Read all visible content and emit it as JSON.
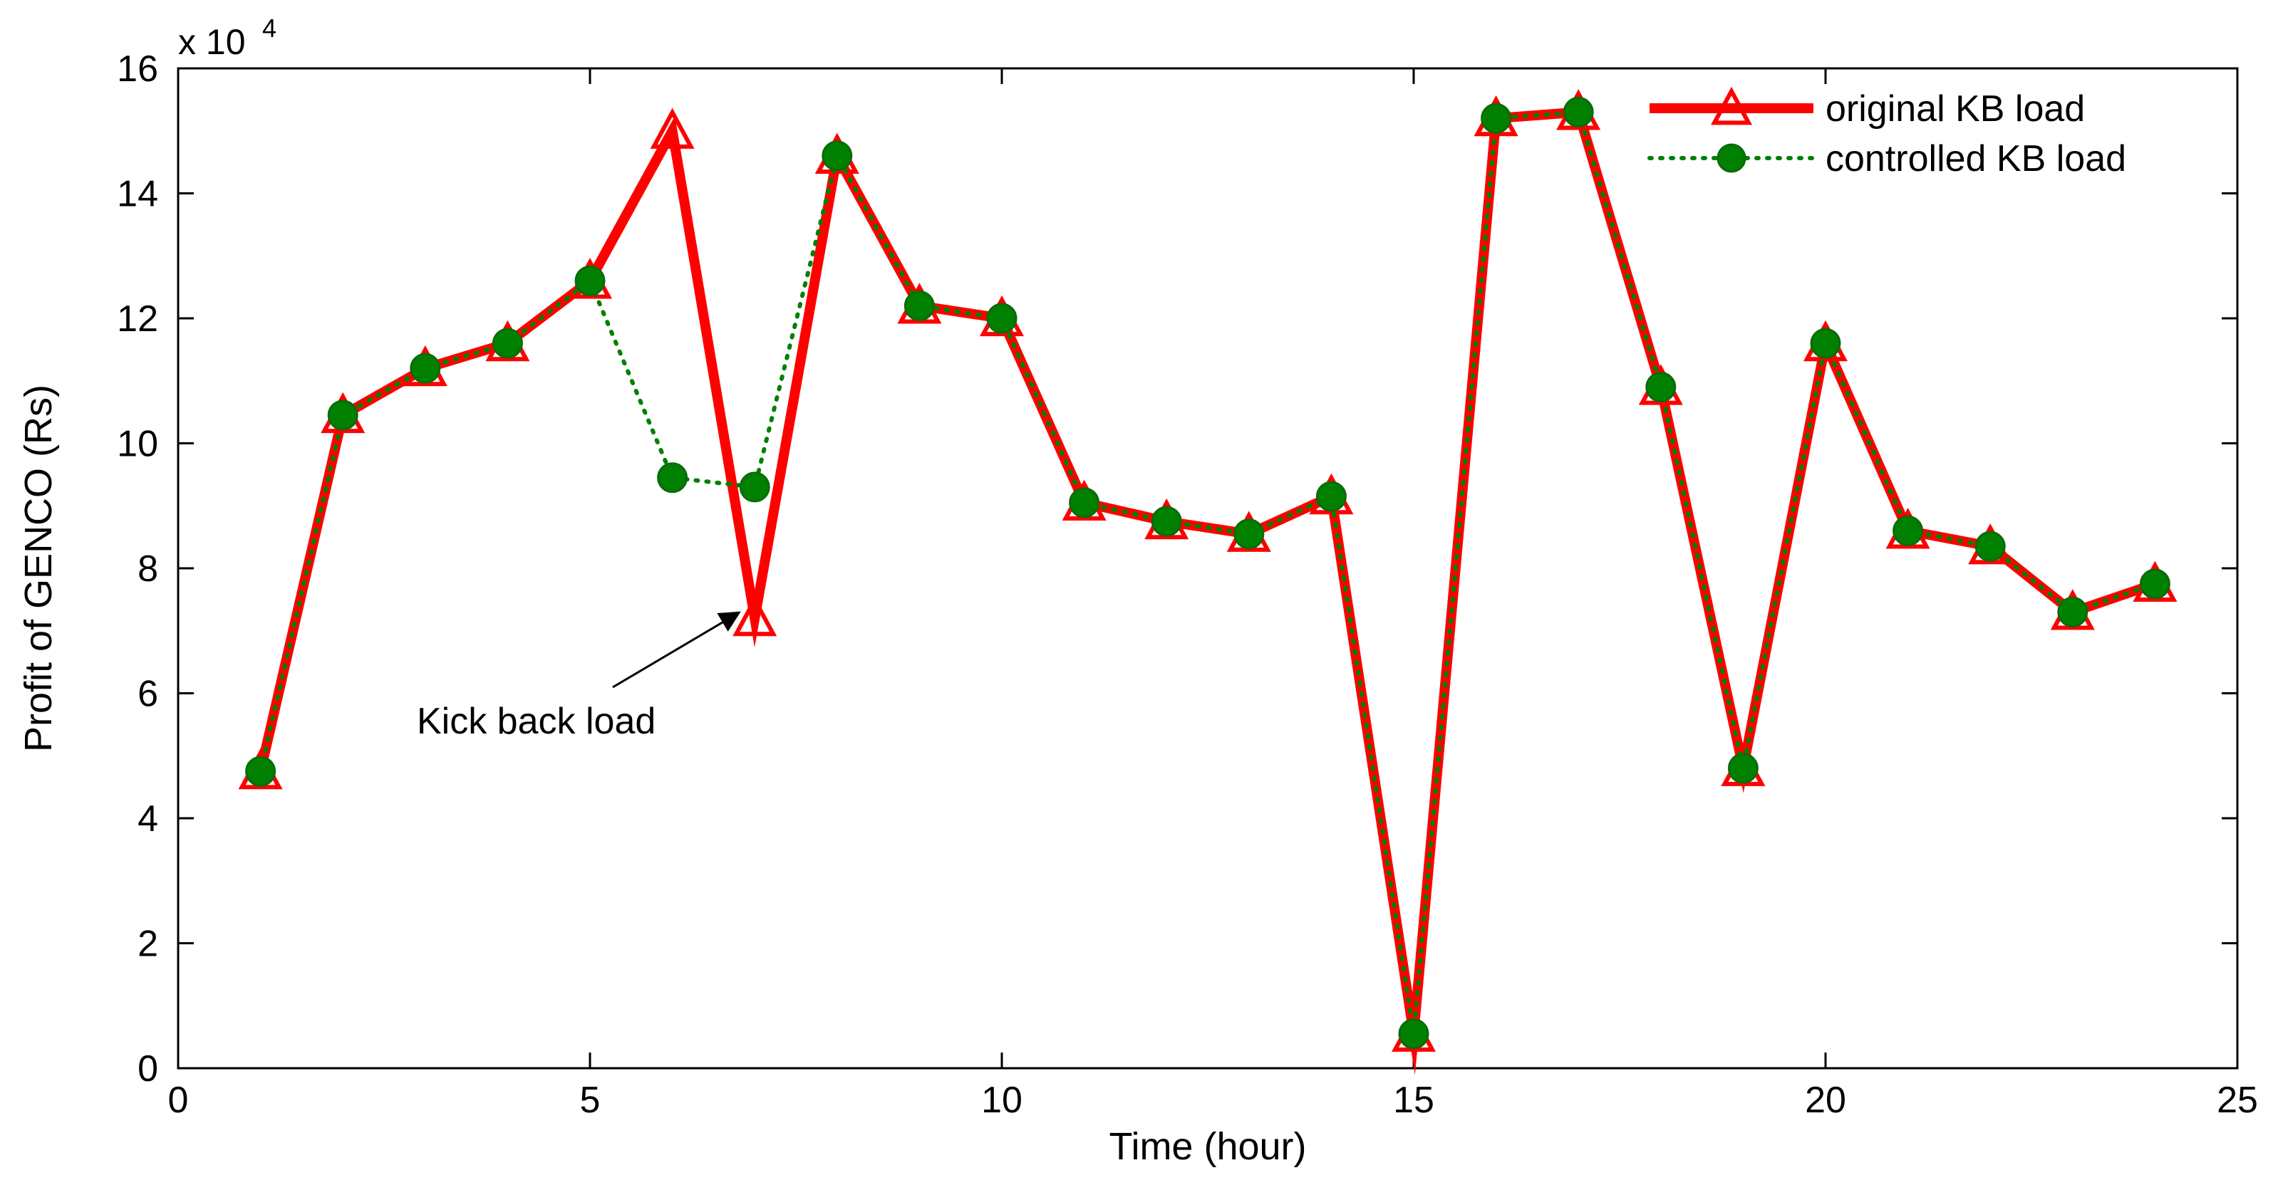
{
  "chart_data": {
    "type": "line",
    "title": "",
    "xlabel": "Time (hour)",
    "ylabel": "Profit of GENCO (Rs)",
    "exponent_label": "x 10",
    "exponent_power": "4",
    "xlim": [
      0,
      25
    ],
    "ylim": [
      0,
      16
    ],
    "xticks": [
      0,
      5,
      10,
      15,
      20,
      25
    ],
    "yticks": [
      0,
      2,
      4,
      6,
      8,
      10,
      12,
      14,
      16
    ],
    "x": [
      1,
      2,
      3,
      4,
      5,
      6,
      7,
      8,
      9,
      10,
      11,
      12,
      13,
      14,
      15,
      16,
      17,
      18,
      19,
      20,
      21,
      22,
      23,
      24
    ],
    "series": [
      {
        "name": "original KB load",
        "color": "#ff0000",
        "marker": "triangle",
        "values": [
          4.75,
          10.45,
          11.2,
          11.6,
          12.6,
          15.0,
          7.2,
          14.6,
          12.2,
          12.0,
          9.05,
          8.75,
          8.55,
          9.15,
          0.55,
          15.2,
          15.3,
          10.9,
          4.8,
          11.6,
          8.6,
          8.35,
          7.3,
          7.75
        ]
      },
      {
        "name": "controlled KB load",
        "color": "#008000",
        "marker": "circle",
        "values": [
          4.75,
          10.45,
          11.2,
          11.6,
          12.6,
          9.45,
          9.3,
          14.6,
          12.2,
          12.0,
          9.05,
          8.75,
          8.55,
          9.15,
          0.55,
          15.2,
          15.3,
          10.9,
          4.8,
          11.6,
          8.6,
          8.35,
          7.3,
          7.75
        ]
      }
    ],
    "annotation": {
      "text": "Kick back load",
      "x": 7,
      "y": 7.2
    },
    "legend_position": "top-right",
    "grid": false
  }
}
